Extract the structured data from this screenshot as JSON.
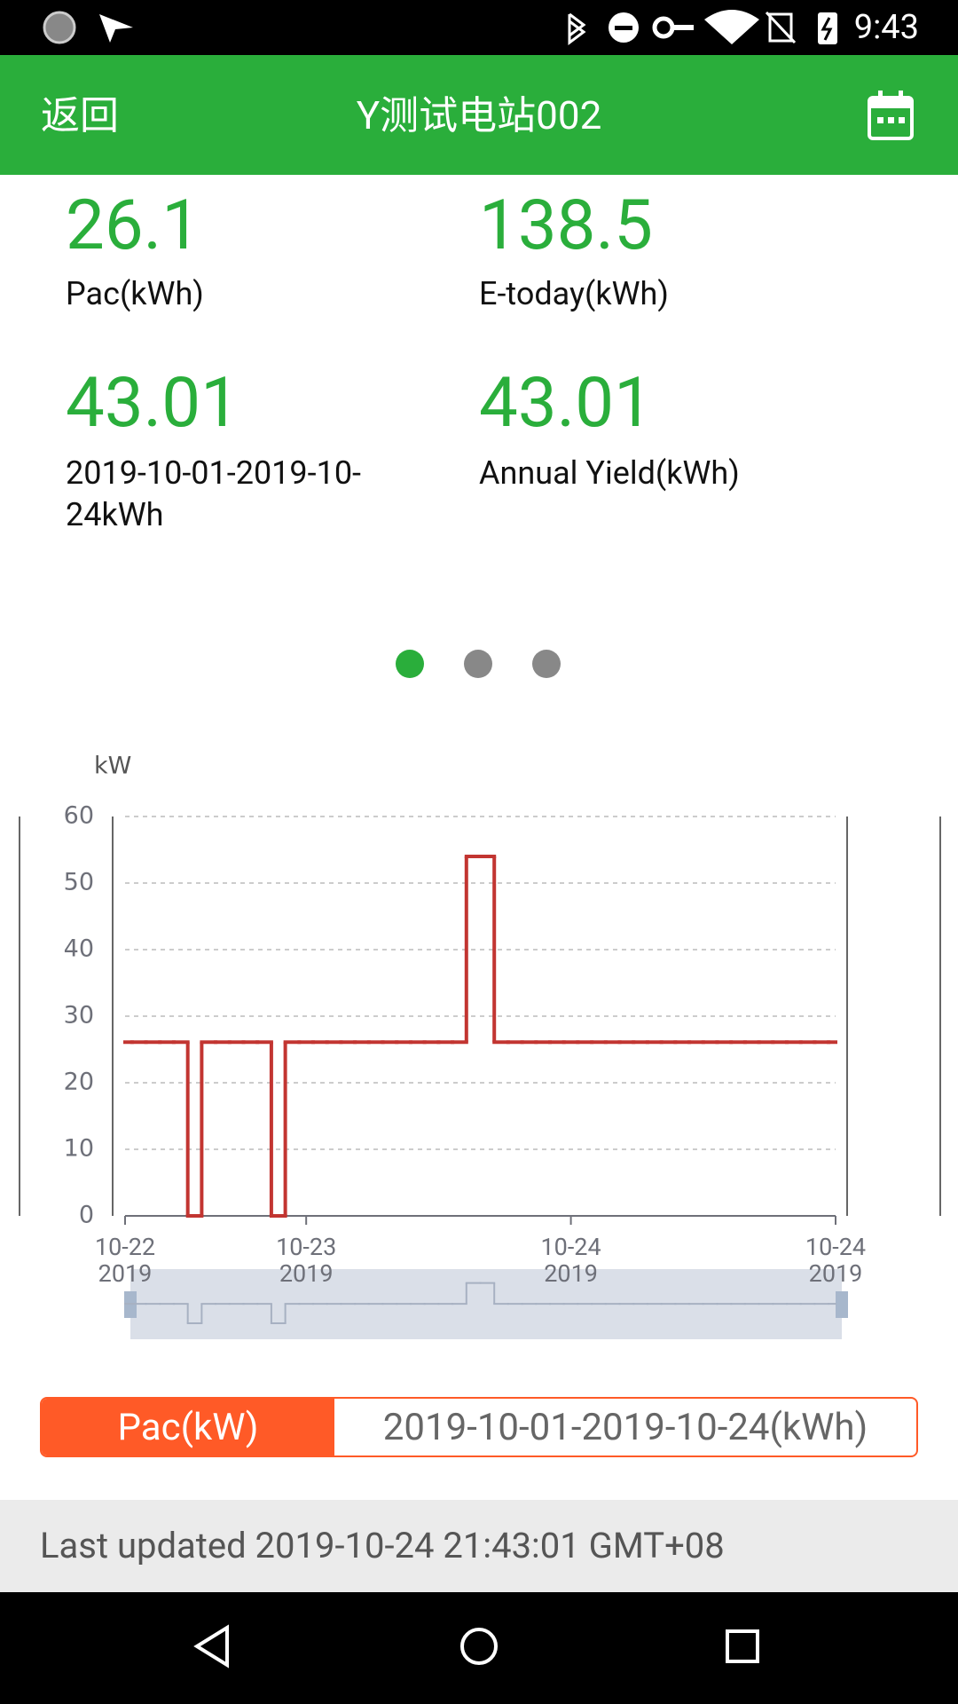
{
  "status_bar": {
    "time": "9:43"
  },
  "header": {
    "back": "返回",
    "title": "Y测试电站002"
  },
  "stats": [
    {
      "value": 26.1,
      "label": "Pac(kWh)"
    },
    {
      "value": 138.5,
      "label": "E-today(kWh)"
    },
    {
      "value": 43.01,
      "label": "2019-10-01-2019-10-24kWh"
    },
    {
      "value": 43.01,
      "label": "Annual Yield(kWh)"
    }
  ],
  "chart_data": {
    "type": "line",
    "y_label": "kW",
    "step": true,
    "color": "#c23531",
    "grid": true,
    "ylim": [
      0,
      60
    ],
    "yticks": [
      0,
      10,
      20,
      30,
      40,
      50,
      60
    ],
    "categories": [
      "10-22\n2019",
      null,
      null,
      null,
      null,
      null,
      null,
      null,
      null,
      null,
      null,
      null,
      null,
      "10-23\n2019",
      null,
      null,
      null,
      null,
      null,
      null,
      null,
      null,
      null,
      null,
      null,
      null,
      null,
      null,
      null,
      null,
      null,
      null,
      "10-24\n2019",
      null,
      null,
      null,
      null,
      null,
      null,
      null,
      null,
      null,
      null,
      null,
      null,
      null,
      null,
      null,
      null,
      null,
      null,
      "10-24\n2019"
    ],
    "values": [
      26.1,
      26.1,
      26.1,
      26.1,
      26.1,
      0,
      26.1,
      26.1,
      26.1,
      26.1,
      26.1,
      0,
      26.1,
      26.1,
      26.1,
      26.1,
      26.1,
      26.1,
      26.1,
      26.1,
      26.1,
      26.1,
      26.1,
      26.1,
      26.1,
      54,
      54,
      26.1,
      26.1,
      26.1,
      26.1,
      26.1,
      26.1,
      26.1,
      26.1,
      26.1,
      26.1,
      26.1,
      26.1,
      26.1,
      26.1,
      26.1,
      26.1,
      26.1,
      26.1,
      26.1,
      26.1,
      26.1,
      26.1,
      26.1,
      26.1,
      26.1
    ]
  },
  "tabs": [
    {
      "label": "Pac(kW)",
      "active": true
    },
    {
      "label": "2019-10-01-2019-10-24(kWh)",
      "active": false
    }
  ],
  "footer": {
    "last_updated": "Last updated 2019-10-24 21:43:01 GMT+08"
  }
}
